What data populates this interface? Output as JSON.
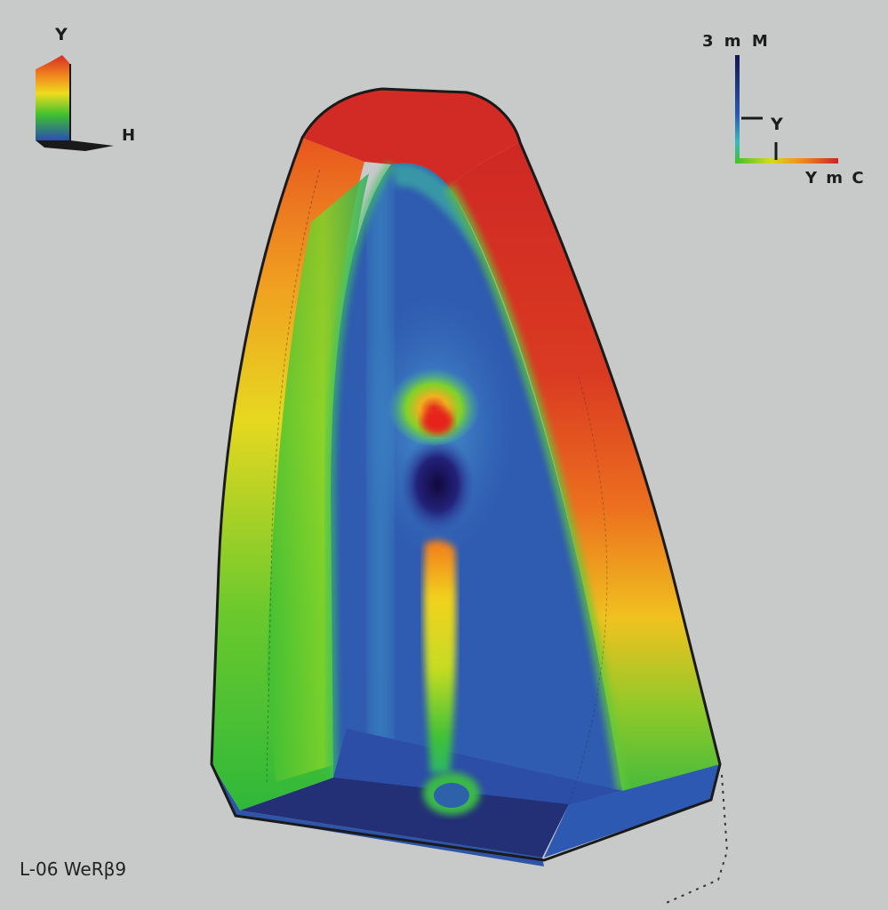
{
  "top_left_axis": {
    "y_label": "Y",
    "x_label": "H"
  },
  "top_right_axis": {
    "title": "3 m M",
    "y_label": "Y",
    "x_label": "Y m C"
  },
  "footer": {
    "text": "L-06 WeRβ9"
  },
  "colors": {
    "background": "#c8c9c9",
    "red": "#d42a24",
    "orange": "#e8641f",
    "yellow": "#eedc1e",
    "green": "#3ec030",
    "blue": "#2f5db0",
    "dark_blue": "#22307a",
    "deep_indigo": "#14104a",
    "outline": "#1a1a1a"
  }
}
